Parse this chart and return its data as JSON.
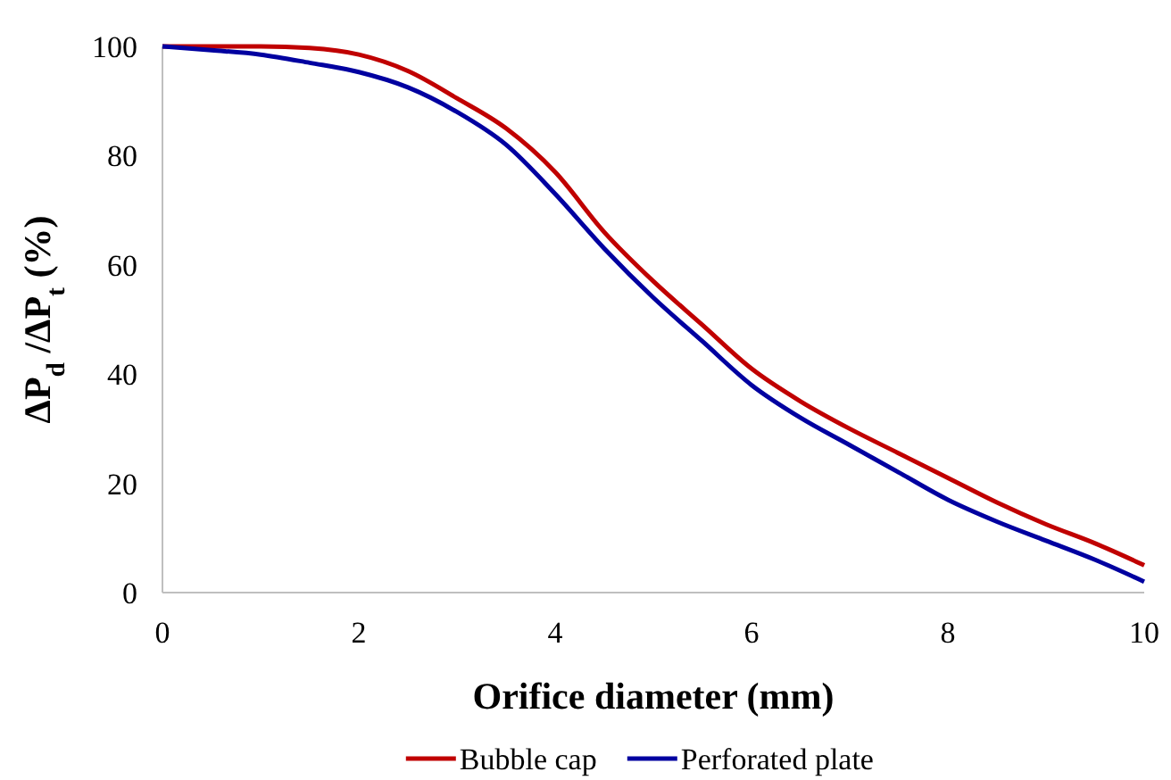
{
  "chart_data": {
    "type": "line",
    "xlabel": "Orifice diameter (mm)",
    "ylabel": "ΔP$_{d}$ /ΔP$_{t}$ (%)",
    "x": [
      0,
      0.5,
      1,
      1.5,
      2,
      2.5,
      3,
      3.5,
      4,
      4.5,
      5,
      5.5,
      6,
      6.5,
      7,
      7.5,
      8,
      8.5,
      9,
      9.5,
      10
    ],
    "series": [
      {
        "name": "Bubble cap",
        "color": "#c00000",
        "values": [
          100,
          100,
          100,
          99.7,
          98.5,
          95.5,
          90.5,
          85,
          77,
          66,
          57,
          49,
          41,
          35,
          30,
          25.5,
          21,
          16.5,
          12.5,
          9,
          5
        ]
      },
      {
        "name": "Perforated plate",
        "color": "#0000a0",
        "values": [
          100,
          99.3,
          98.5,
          97,
          95.3,
          92.5,
          88,
          82,
          73,
          63,
          54,
          46,
          38,
          32,
          27,
          22,
          17,
          13,
          9.5,
          6,
          2
        ]
      }
    ],
    "xlim": [
      0,
      10
    ],
    "xticks": [
      0,
      2,
      4,
      6,
      8,
      10
    ],
    "ylim": [
      0,
      100
    ],
    "yticks": [
      0,
      20,
      40,
      60,
      80,
      100
    ],
    "grid": false,
    "legend": "bottom",
    "marker": "none",
    "line_style": "solid"
  }
}
